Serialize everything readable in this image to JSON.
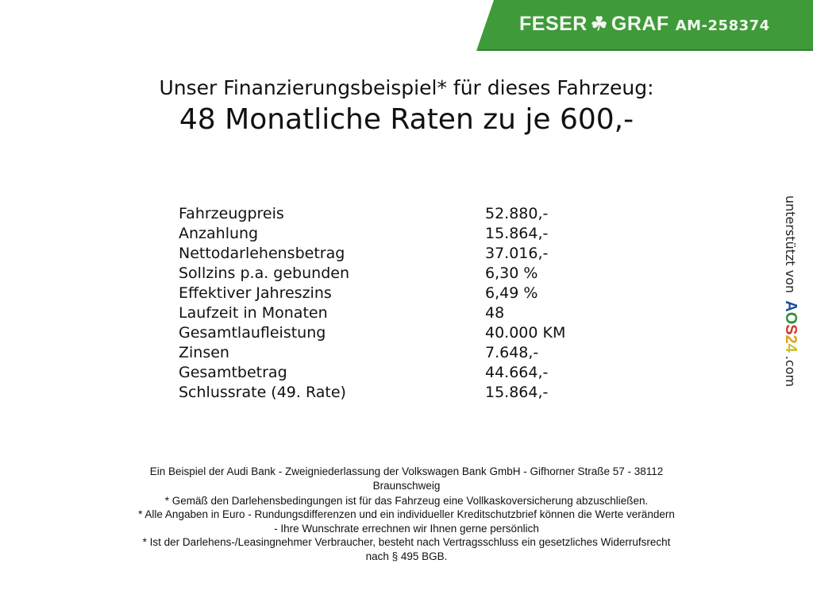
{
  "banner": {
    "brand_left": "FESER",
    "brand_icon": "clover-icon",
    "brand_right": "GRAF",
    "listing_id": "AM-258374",
    "color": "#3f9a3a"
  },
  "header": {
    "title": "Unser Finanzierungsbeispiel* für dieses Fahrzeug:",
    "subtitle": "48 Monatliche Raten zu je 600,-"
  },
  "finance_table": [
    {
      "label": "Fahrzeugpreis",
      "value": "52.880,-"
    },
    {
      "label": "Anzahlung",
      "value": "15.864,-"
    },
    {
      "label": "Nettodarlehensbetrag",
      "value": "37.016,-"
    },
    {
      "label": "Sollzins p.a. gebunden",
      "value": "6,30 %"
    },
    {
      "label": "Effektiver Jahreszins",
      "value": "6,49 %"
    },
    {
      "label": "Laufzeit in Monaten",
      "value": "48"
    },
    {
      "label": "Gesamtlaufleistung",
      "value": "40.000 KM"
    },
    {
      "label": "Zinsen",
      "value": "7.648,-"
    },
    {
      "label": "Gesamtbetrag",
      "value": "44.664,-"
    },
    {
      "label": "Schlussrate (49. Rate)",
      "value": "15.864,-"
    }
  ],
  "side_note": {
    "prefix": "unterstützt von",
    "logo": [
      "A",
      "O",
      "S",
      "2",
      "4"
    ],
    "suffix": ".com"
  },
  "footer": {
    "lines": [
      "Ein Beispiel der Audi Bank - Zweigniederlassung der Volkswagen Bank GmbH - Gifhorner Straße 57 - 38112",
      "Braunschweig",
      "* Gemäß den Darlehensbedingungen ist für das Fahrzeug eine Vollkaskoversicherung abzuschließen.",
      "* Alle Angaben in Euro - Rundungsdifferenzen und ein individueller Kreditschutzbrief können die Werte verändern",
      "- Ihre Wunschrate errechnen wir Ihnen gerne persönlich",
      "* Ist der Darlehens-/Leasingnehmer Verbraucher, besteht nach Vertragsschluss ein gesetzliches Widerrufsrecht",
      "nach § 495 BGB."
    ]
  }
}
